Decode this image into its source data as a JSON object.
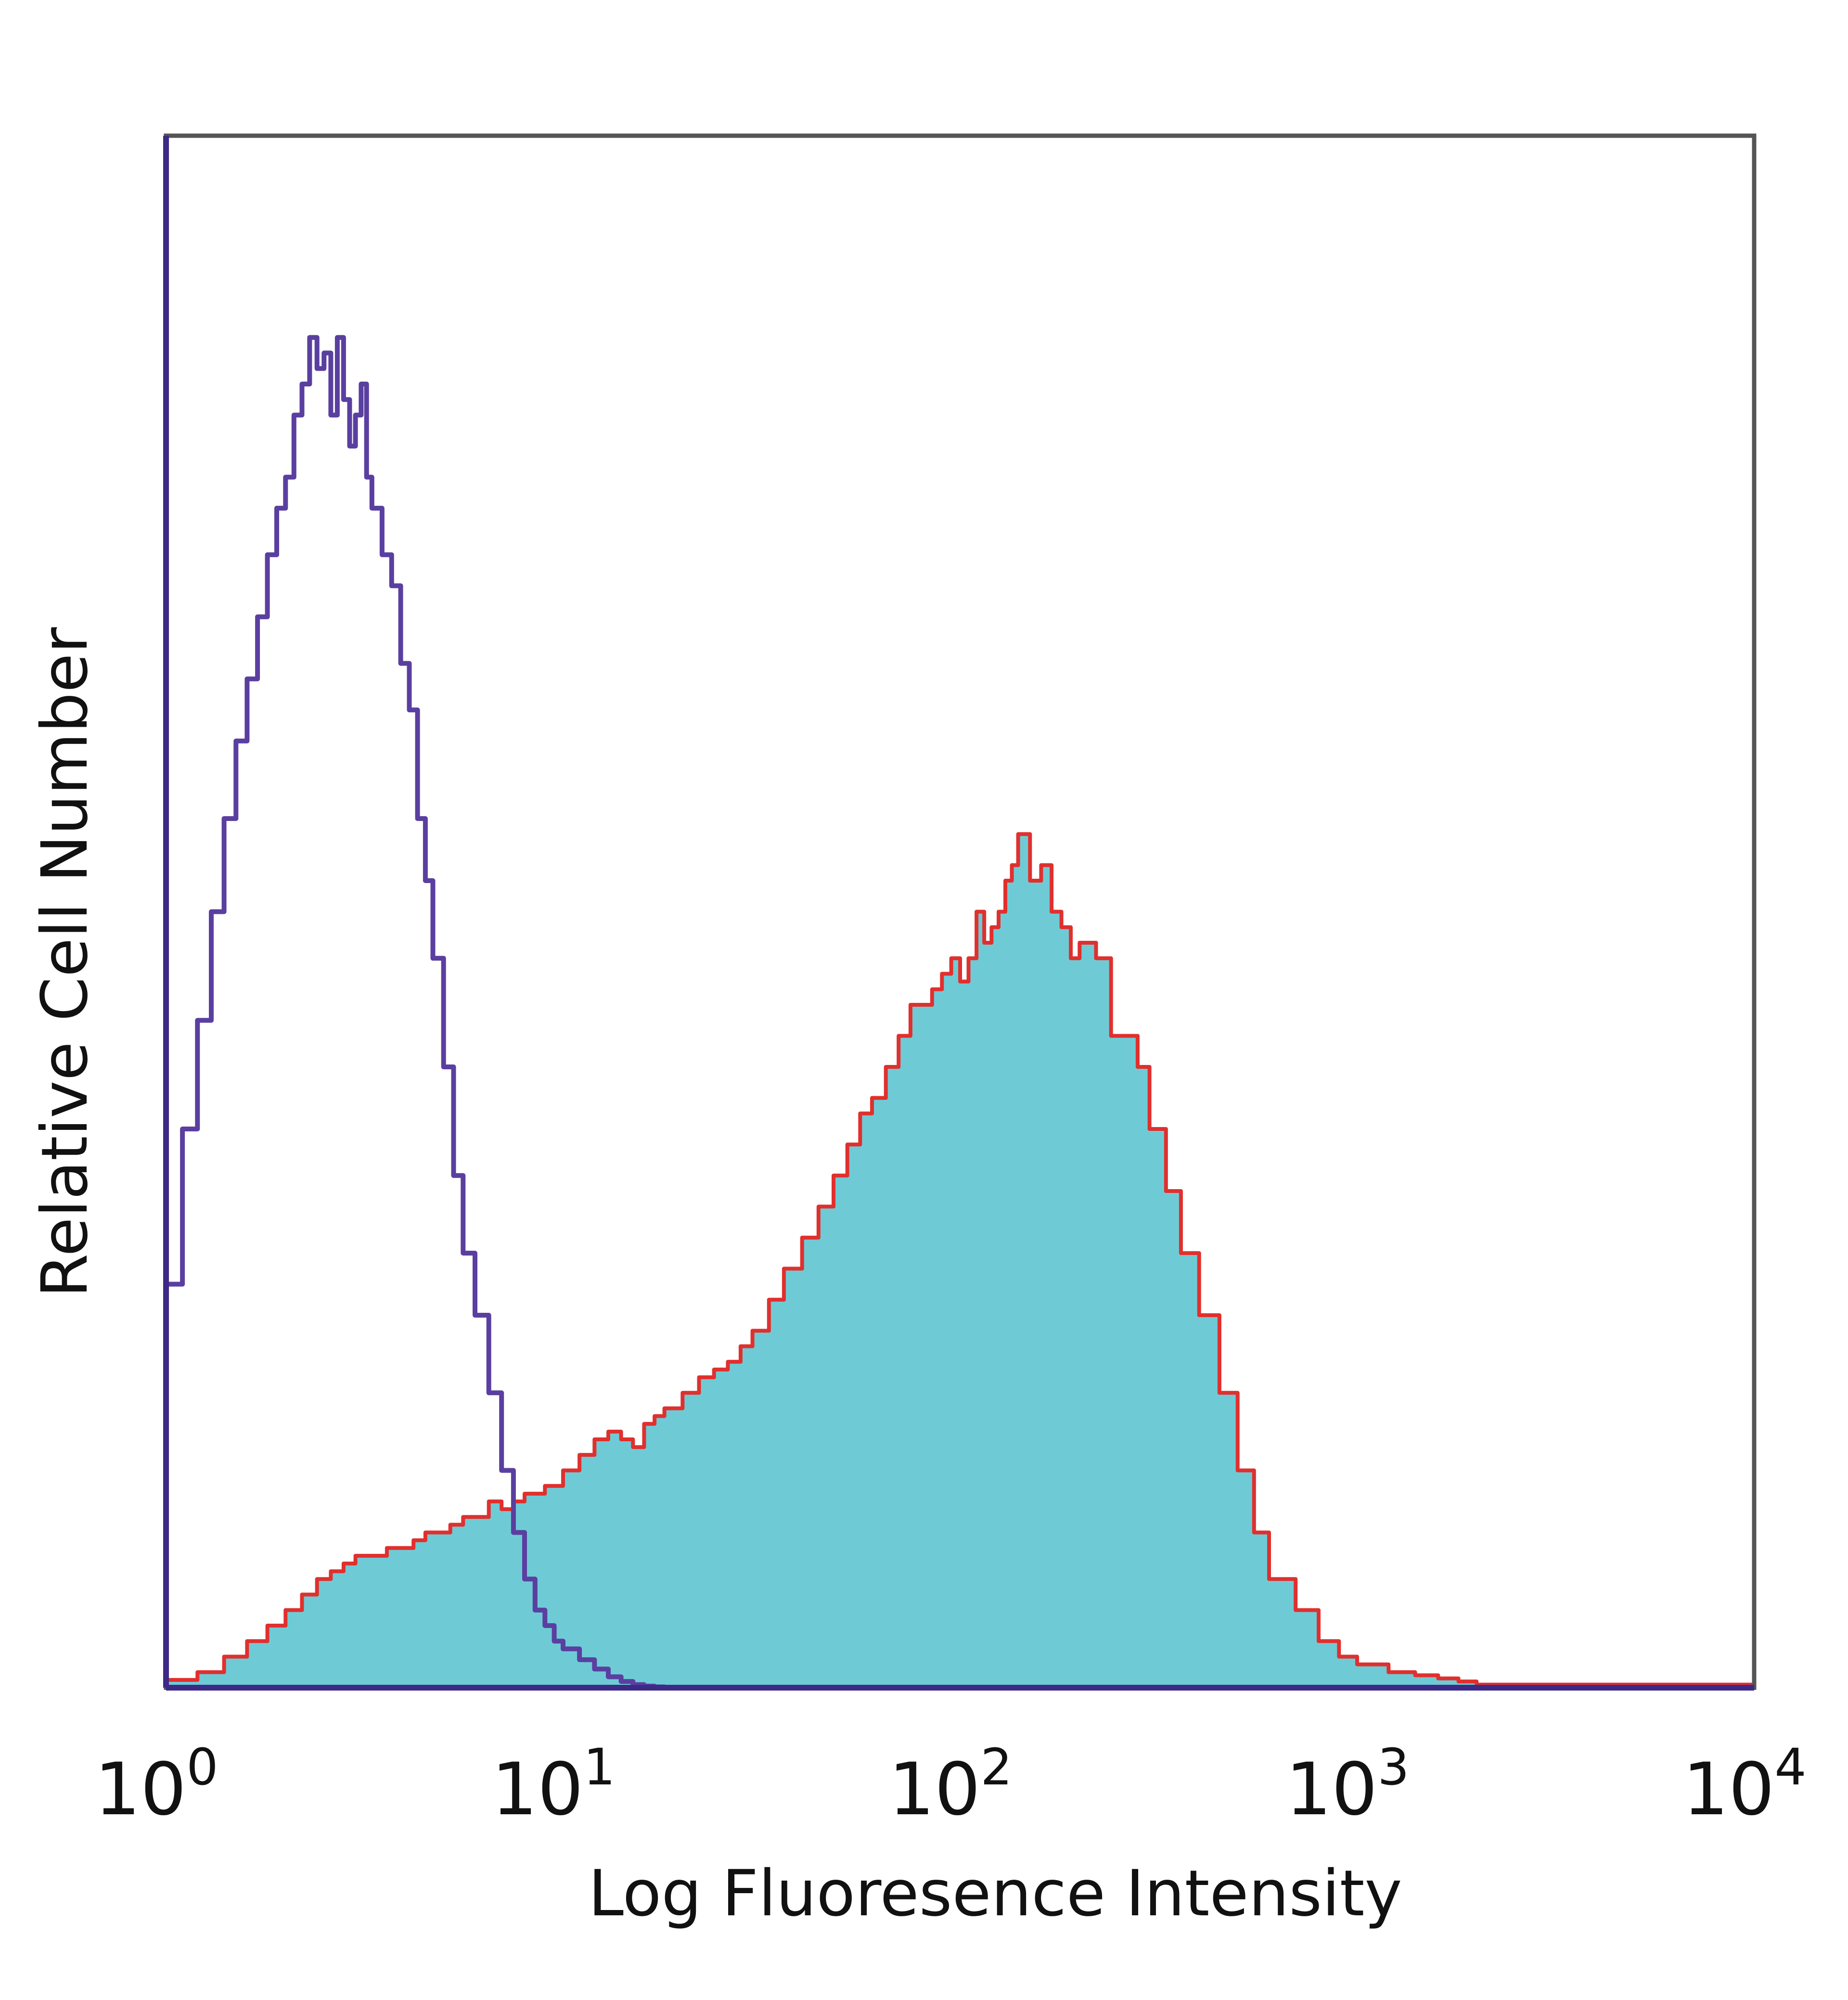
{
  "chart_data": {
    "type": "area",
    "xlabel": "Log Fluoresence Intensity",
    "ylabel": "Relative Cell Number",
    "x_scale": "log",
    "xlim": [
      1,
      10000
    ],
    "ylim": [
      0,
      100
    ],
    "grid": false,
    "legend": "none",
    "x_ticks": [
      {
        "base": "10",
        "exp": "0",
        "value": 1
      },
      {
        "base": "10",
        "exp": "1",
        "value": 10
      },
      {
        "base": "10",
        "exp": "2",
        "value": 100
      },
      {
        "base": "10",
        "exp": "3",
        "value": 1000
      },
      {
        "base": "10",
        "exp": "4",
        "value": 10000
      }
    ],
    "series": [
      {
        "style": "outline",
        "color": "#5a3fa0",
        "x": [
          1.0,
          1.1,
          1.2,
          1.3,
          1.4,
          1.5,
          1.6,
          1.7,
          1.8,
          1.9,
          2.0,
          2.1,
          2.2,
          2.3,
          2.4,
          2.5,
          2.6,
          2.7,
          2.8,
          2.9,
          3.0,
          3.1,
          3.2,
          3.3,
          3.5,
          3.7,
          3.9,
          4.1,
          4.3,
          4.5,
          4.7,
          5.0,
          5.3,
          5.6,
          6.0,
          6.5,
          7.0,
          7.5,
          8.0,
          8.5,
          9.0,
          9.5,
          10.0,
          11.0,
          12.0,
          13.0,
          14.0,
          15.0,
          16.0,
          17.0,
          18.0,
          20.0,
          10000.0
        ],
        "y": [
          26,
          36,
          43,
          50,
          56,
          61,
          65,
          69,
          73,
          76,
          78,
          82,
          84,
          87,
          85,
          86,
          82,
          87,
          83,
          80,
          82,
          84,
          78,
          76,
          73,
          71,
          66,
          63,
          56,
          52,
          47,
          40,
          33,
          28,
          24,
          19,
          14,
          10,
          7,
          5,
          4,
          3,
          2.5,
          1.8,
          1.2,
          0.7,
          0.4,
          0.2,
          0.1,
          0.05,
          0,
          0,
          0
        ]
      },
      {
        "style": "filled",
        "color": "#6ecbd6",
        "edge_color": "#e0302e",
        "x": [
          1.0,
          1.2,
          1.4,
          1.6,
          1.8,
          2.0,
          2.2,
          2.4,
          2.6,
          2.8,
          3.0,
          3.3,
          3.6,
          3.9,
          4.2,
          4.5,
          4.8,
          5.2,
          5.6,
          6.0,
          6.5,
          7.0,
          7.5,
          8.0,
          9.0,
          10.0,
          11.0,
          12.0,
          13.0,
          14.0,
          15.0,
          16.0,
          17.0,
          18.0,
          20.0,
          22.0,
          24.0,
          26.0,
          28.0,
          30.0,
          33.0,
          36.0,
          40.0,
          44.0,
          48.0,
          52.0,
          56.0,
          60.0,
          65.0,
          70.0,
          75.0,
          80.0,
          85.0,
          90.0,
          95.0,
          100.0,
          105.0,
          110.0,
          115.0,
          120.0,
          125.0,
          130.0,
          135.0,
          140.0,
          150.0,
          160.0,
          170.0,
          180.0,
          190.0,
          200.0,
          220.0,
          240.0,
          260.0,
          280.0,
          300.0,
          330.0,
          360.0,
          400.0,
          450.0,
          500.0,
          550.0,
          600.0,
          700.0,
          800.0,
          900.0,
          1000.0,
          1200.0,
          1400.0,
          1600.0,
          1800.0,
          2000.0,
          10000.0
        ],
        "y": [
          0.5,
          1,
          2,
          3,
          4,
          5,
          6,
          7,
          7.5,
          8,
          8.5,
          8.5,
          9,
          9,
          9.5,
          10,
          10,
          10.5,
          11,
          11,
          12,
          11.5,
          12,
          12.5,
          13,
          14,
          15,
          16,
          16.5,
          16,
          15.5,
          17,
          17.5,
          18,
          19,
          20,
          20.5,
          21,
          22,
          23,
          25,
          27,
          29,
          31,
          33,
          35,
          37,
          38,
          40,
          42,
          44,
          44,
          45,
          46,
          47,
          45.5,
          47,
          50,
          48,
          49,
          50,
          52,
          53,
          55,
          52,
          53,
          50,
          49,
          47,
          48,
          47,
          42,
          42,
          40,
          36,
          32,
          28,
          24,
          19,
          14,
          10,
          7,
          5,
          3,
          2,
          1.5,
          1,
          0.8,
          0.6,
          0.4,
          0.2,
          0
        ]
      }
    ]
  }
}
